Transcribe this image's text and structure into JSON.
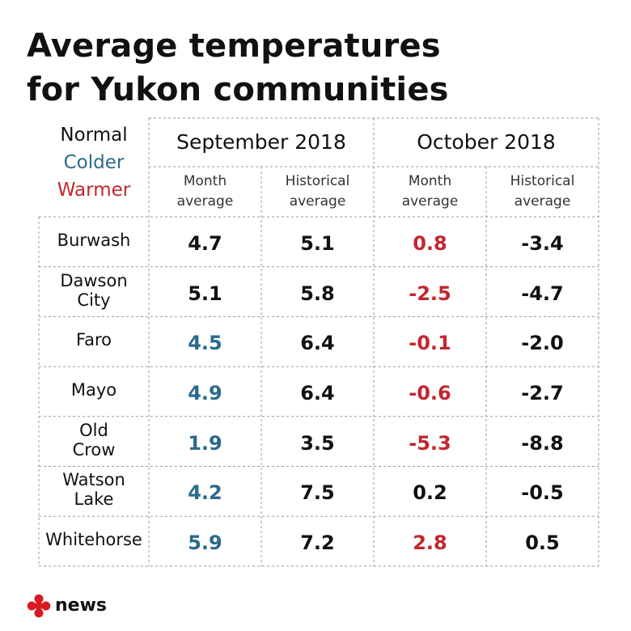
{
  "title_lines": [
    "Average temperatures",
    "for Yukon communities"
  ],
  "legend": {
    "normal": "Normal",
    "colder": "Colder",
    "warmer": "Warmer",
    "colors": {
      "normal": "#111111",
      "colder": "#2a6a8c",
      "warmer": "#c4262e"
    }
  },
  "months": [
    "September 2018",
    "October 2018"
  ],
  "subheaders": [
    [
      "Month",
      "average"
    ],
    [
      "Historical",
      "average"
    ],
    [
      "Month",
      "average"
    ],
    [
      "Historical",
      "average"
    ]
  ],
  "rows": [
    {
      "label_lines": [
        "Burwash"
      ],
      "values": [
        "4.7",
        "5.1",
        "0.8",
        "-3.4"
      ],
      "status": [
        "normal",
        "normal",
        "warmer",
        "normal"
      ]
    },
    {
      "label_lines": [
        "Dawson",
        "City"
      ],
      "values": [
        "5.1",
        "5.8",
        "-2.5",
        "-4.7"
      ],
      "status": [
        "normal",
        "normal",
        "warmer",
        "normal"
      ]
    },
    {
      "label_lines": [
        "Faro"
      ],
      "values": [
        "4.5",
        "6.4",
        "-0.1",
        "-2.0"
      ],
      "status": [
        "colder",
        "normal",
        "warmer",
        "normal"
      ]
    },
    {
      "label_lines": [
        "Mayo"
      ],
      "values": [
        "4.9",
        "6.4",
        "-0.6",
        "-2.7"
      ],
      "status": [
        "colder",
        "normal",
        "warmer",
        "normal"
      ]
    },
    {
      "label_lines": [
        "Old",
        "Crow"
      ],
      "values": [
        "1.9",
        "3.5",
        "-5.3",
        "-8.8"
      ],
      "status": [
        "colder",
        "normal",
        "warmer",
        "normal"
      ]
    },
    {
      "label_lines": [
        "Watson",
        "Lake"
      ],
      "values": [
        "4.2",
        "7.5",
        "0.2",
        "-0.5"
      ],
      "status": [
        "colder",
        "normal",
        "normal",
        "normal"
      ]
    },
    {
      "label_lines": [
        "Whitehorse"
      ],
      "values": [
        "5.9",
        "7.2",
        "2.8",
        "0.5"
      ],
      "status": [
        "colder",
        "normal",
        "warmer",
        "normal"
      ]
    }
  ],
  "chart_data": {
    "type": "table",
    "title": "Average temperatures for Yukon communities",
    "columns": [
      "September 2018 Month average",
      "September 2018 Historical average",
      "October 2018 Month average",
      "October 2018 Historical average"
    ],
    "categories": [
      "Burwash",
      "Dawson City",
      "Faro",
      "Mayo",
      "Old Crow",
      "Watson Lake",
      "Whitehorse"
    ],
    "series": [
      {
        "name": "September 2018 Month average",
        "values": [
          4.7,
          5.1,
          4.5,
          4.9,
          1.9,
          4.2,
          5.9
        ]
      },
      {
        "name": "September 2018 Historical average",
        "values": [
          5.1,
          5.8,
          6.4,
          6.4,
          3.5,
          7.5,
          7.2
        ]
      },
      {
        "name": "October 2018 Month average",
        "values": [
          0.8,
          -2.5,
          -0.1,
          -0.6,
          -5.3,
          0.2,
          2.8
        ]
      },
      {
        "name": "October 2018 Historical average",
        "values": [
          -3.4,
          -4.7,
          -2.0,
          -2.7,
          -8.8,
          -0.5,
          0.5
        ]
      }
    ]
  },
  "footer": {
    "brand": "news",
    "icon": "cbc-gem-icon",
    "brand_color": "#d91a20"
  }
}
